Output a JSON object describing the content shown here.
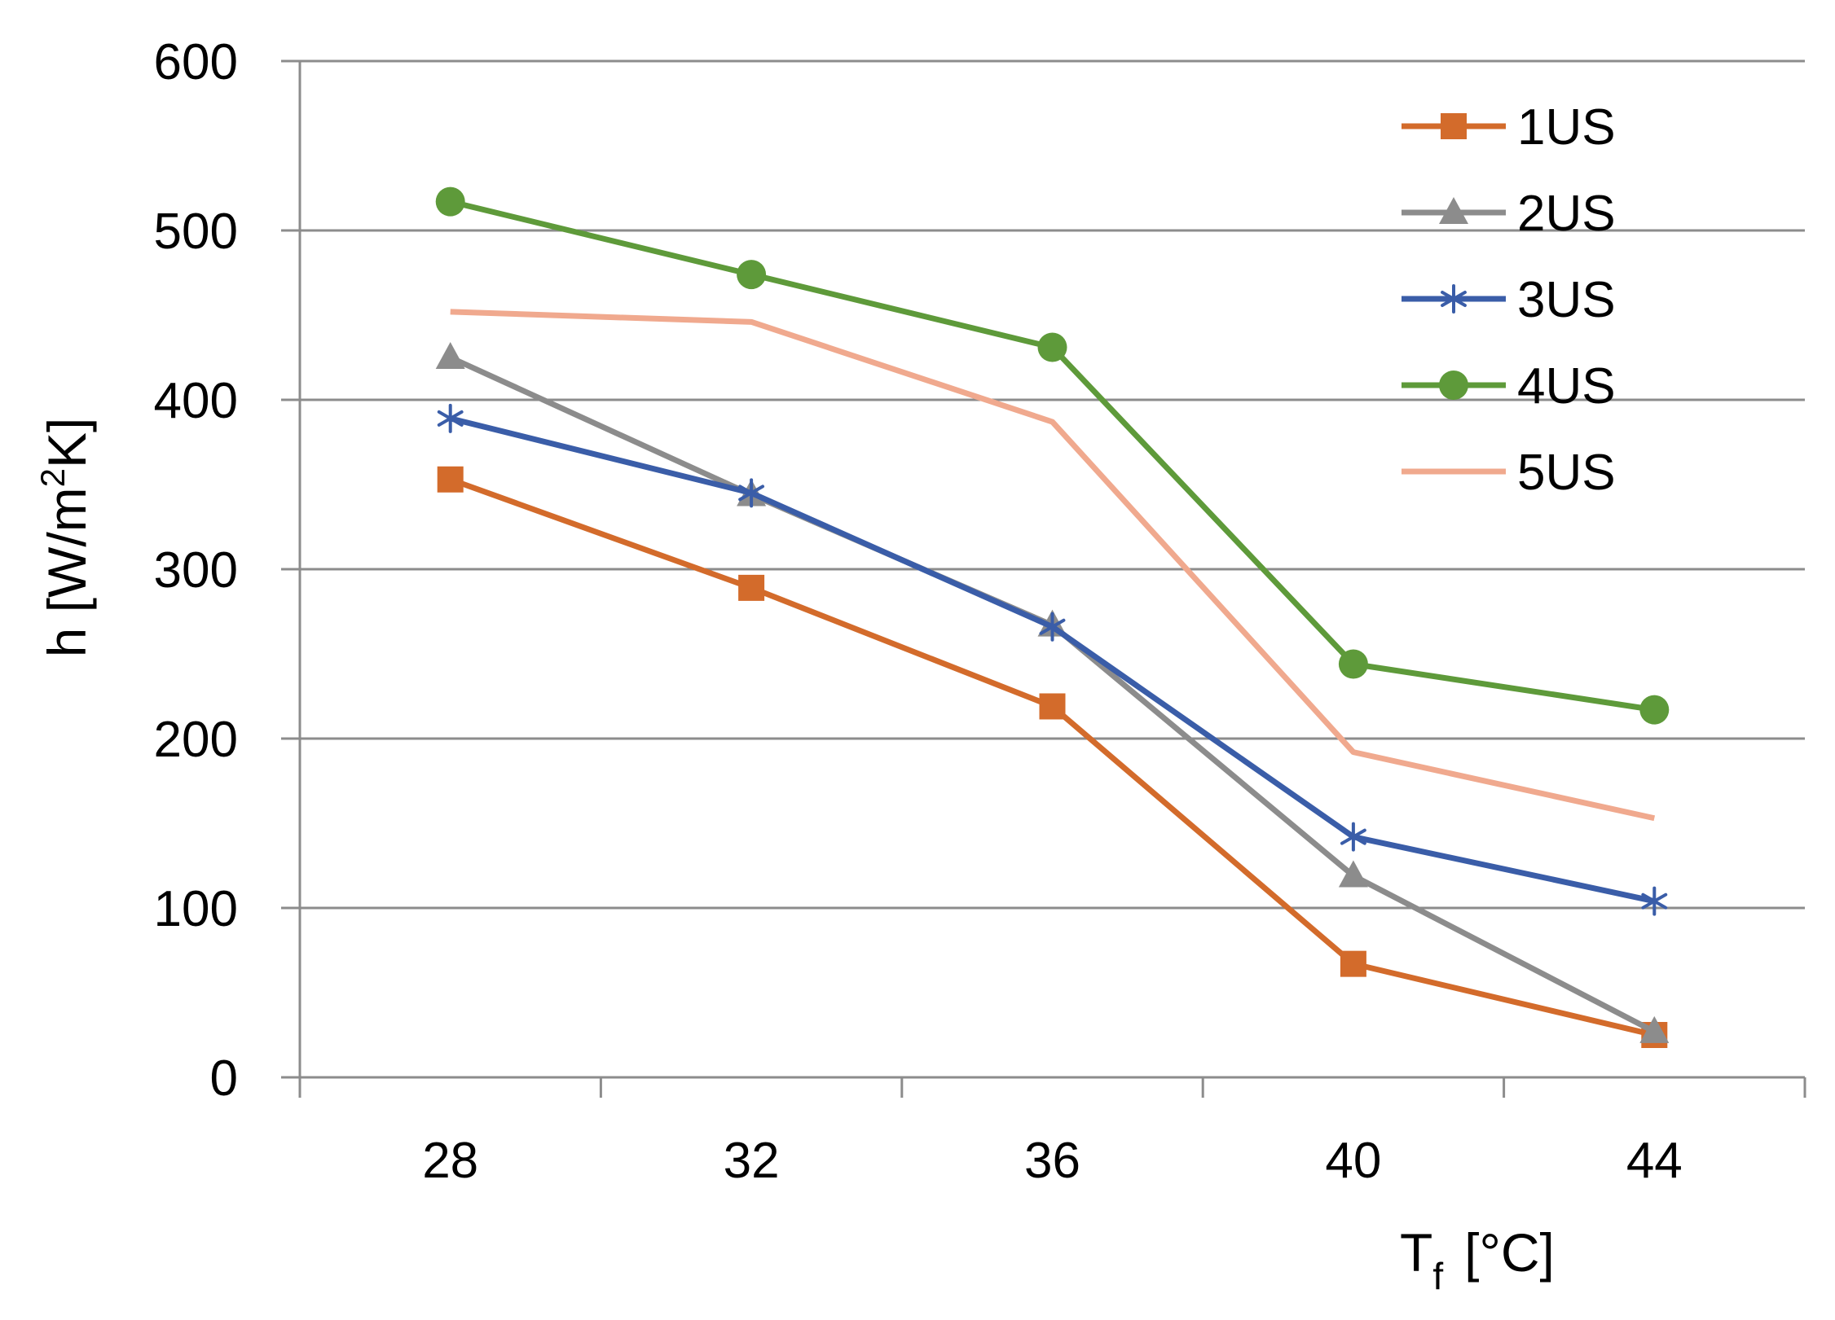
{
  "chart_data": {
    "type": "line",
    "title": "",
    "x": [
      28,
      32,
      36,
      40,
      44
    ],
    "xlabel": {
      "main": "T",
      "sub": "f",
      "rest": "[°C]"
    },
    "ylabel": {
      "main": "h [W/m",
      "sup": "2",
      "rest": "K]"
    },
    "ylim": [
      0,
      600
    ],
    "yticks": [
      0,
      100,
      200,
      300,
      400,
      500,
      600
    ],
    "grid": true,
    "legend_position": "top-right",
    "series": [
      {
        "name": "1US",
        "color": "#d36b2b",
        "marker": "square",
        "values": [
          353,
          289,
          219,
          67,
          25
        ]
      },
      {
        "name": "2US",
        "color": "#8c8c8c",
        "marker": "triangle",
        "values": [
          425,
          344,
          267,
          119,
          27
        ]
      },
      {
        "name": "3US",
        "color": "#3a5da8",
        "marker": "star",
        "values": [
          389,
          345,
          266,
          142,
          104
        ]
      },
      {
        "name": "4US",
        "color": "#5e9a3a",
        "marker": "circle",
        "values": [
          517,
          474,
          431,
          244,
          217
        ]
      },
      {
        "name": "5US",
        "color": "#f0a98e",
        "marker": "none",
        "values": [
          452,
          446,
          387,
          192,
          153
        ]
      }
    ]
  }
}
